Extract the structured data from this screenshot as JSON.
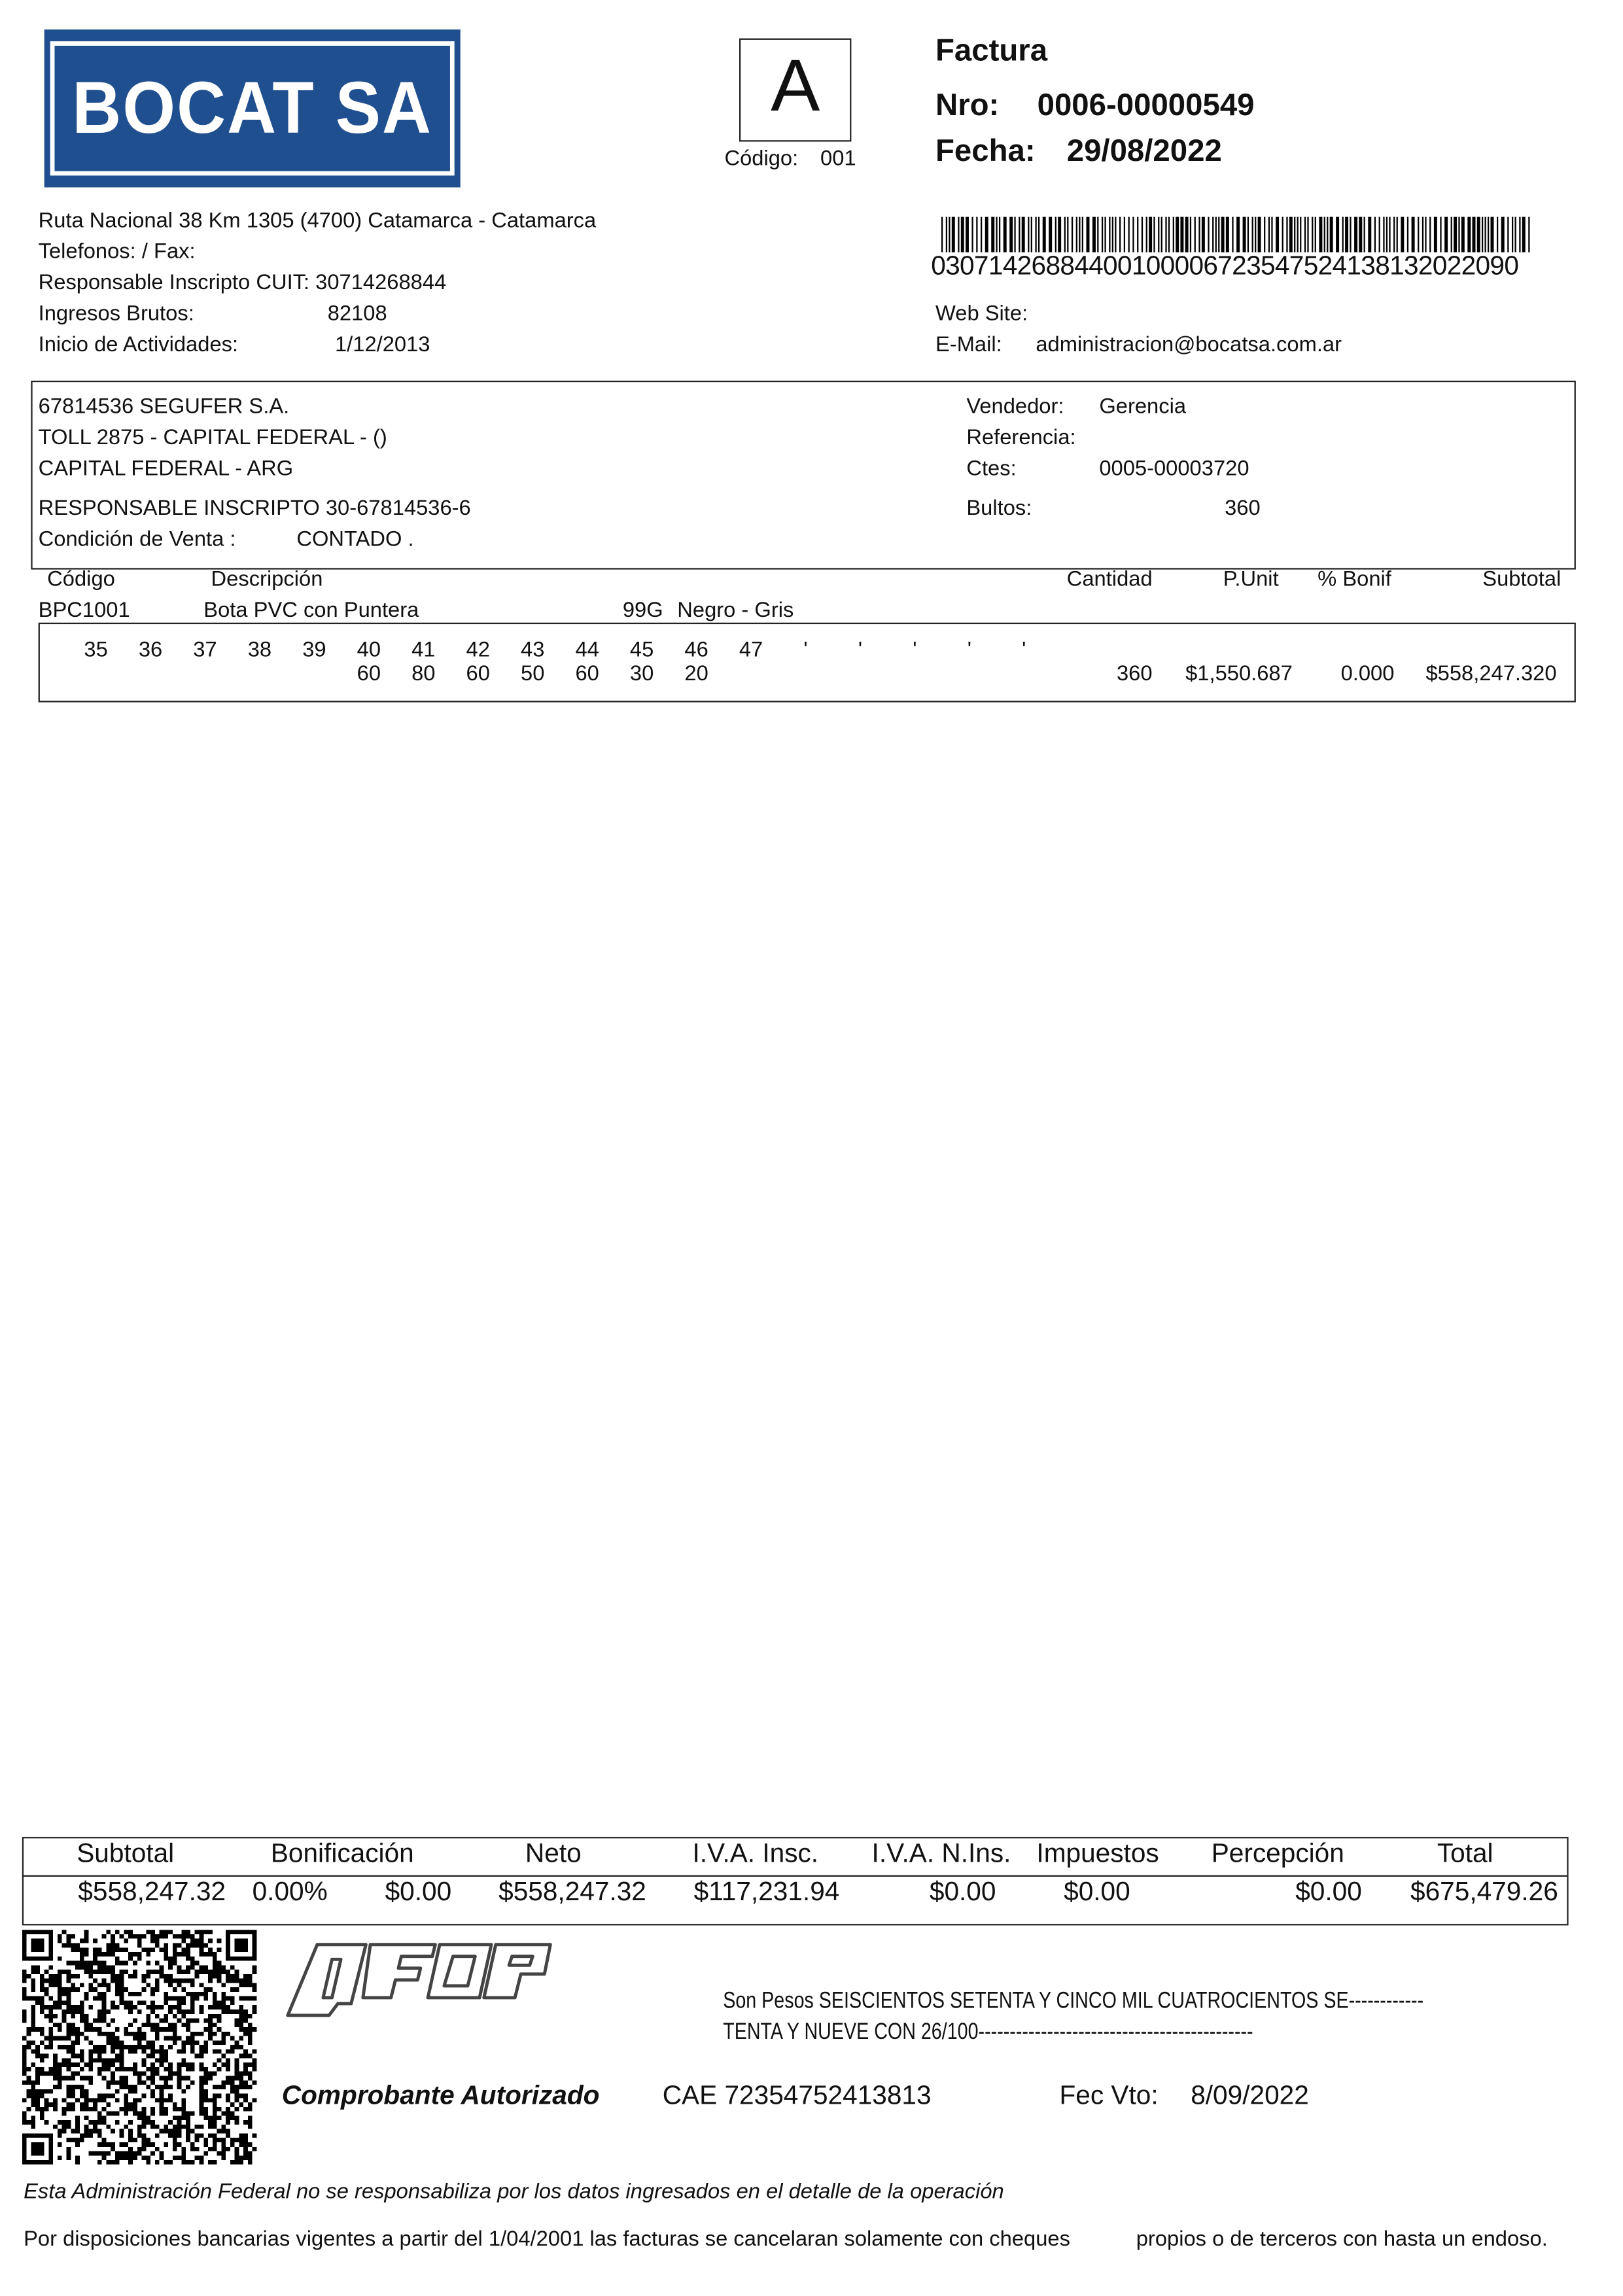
{
  "company": {
    "logo_text": "BOCAT SA",
    "address": "Ruta Nacional 38 Km 1305 (4700) Catamarca - Catamarca",
    "phones": "Telefonos:  / Fax:",
    "cuit": "Responsable Inscripto CUIT: 30714268844",
    "iibb_label": "Ingresos Brutos:",
    "iibb_value": "82108",
    "inicio_label": "Inicio de Actividades:",
    "inicio_value": "1/12/2013",
    "web_label": "Web Site:",
    "email_label": "E-Mail:",
    "email_value": "administracion@bocatsa.com.ar",
    "brand_color": "#1f4f8f"
  },
  "invoice": {
    "letter": "A",
    "codigo_label": "Código:",
    "codigo_value": "001",
    "title": "Factura",
    "nro_label": "Nro:",
    "nro_value": "0006-00000549",
    "fecha_label": "Fecha:",
    "fecha_value": "29/08/2022",
    "barcode_number": "03071426884400100006723547524138132022090"
  },
  "client": {
    "line1": "67814536  SEGUFER S.A.",
    "line2": "TOLL 2875 - CAPITAL FEDERAL - ()",
    "line3": "CAPITAL FEDERAL - ARG",
    "iva": "RESPONSABLE INSCRIPTO  30-67814536-6",
    "cond_label": "Condición de Venta :",
    "cond_value": "CONTADO .",
    "vendedor_label": "Vendedor:",
    "vendedor_value": "Gerencia",
    "referencia_label": "Referencia:",
    "ctes_label": "Ctes:",
    "ctes_value": "0005-00003720",
    "bultos_label": "Bultos:",
    "bultos_value": "360"
  },
  "items_header": {
    "codigo": "Código",
    "descripcion": "Descripción",
    "cantidad": "Cantidad",
    "punit": "P.Unit",
    "bonif": "% Bonif",
    "subtotal": "Subtotal"
  },
  "items": [
    {
      "codigo": "BPC1001",
      "descripcion": "Bota PVC con Puntera",
      "modelo": "99G",
      "color": "Negro - Gris",
      "sizes": [
        "35",
        "36",
        "37",
        "38",
        "39",
        "40",
        "41",
        "42",
        "43",
        "44",
        "45",
        "46",
        "47",
        "'",
        "'",
        "'",
        "'",
        "'"
      ],
      "qty_per_size": [
        "",
        "",
        "",
        "",
        "",
        "60",
        "80",
        "60",
        "50",
        "60",
        "30",
        "20",
        "",
        "",
        "",
        "",
        "",
        ""
      ],
      "cantidad": "360",
      "punit": "$1,550.687",
      "bonif": "0.000",
      "subtotal": "$558,247.320"
    }
  ],
  "totals": {
    "headers": [
      "Subtotal",
      "Bonificación",
      "Neto",
      "I.V.A. Insc.",
      "I.V.A. N.Ins.",
      "Impuestos",
      "Percepción",
      "Total"
    ],
    "values": [
      "$558,247.32",
      "0.00%",
      "$0.00",
      "$558,247.32",
      "$117,231.94",
      "$0.00",
      "$0.00",
      "$0.00",
      "$675,479.26"
    ]
  },
  "footer": {
    "afip_logo": "AFIP",
    "son_pesos_1": "Son Pesos SEISCIENTOS SETENTA Y CINCO MIL CUATROCIENTOS SE------------",
    "son_pesos_2": "TENTA Y NUEVE CON 26/100--------------------------------------------",
    "autorizado": "Comprobante Autorizado",
    "cae": "CAE 72354752413813",
    "fec_vto_label": "Fec Vto:",
    "fec_vto_value": "8/09/2022",
    "disclaimer": "Esta Administración Federal no se responsabiliza por los datos ingresados en el detalle de la operación",
    "bank_note_1": "Por disposiciones bancarias vigentes a partir del 1/04/2001 las facturas se cancelaran solamente con cheques",
    "bank_note_2": "propios o de terceros con hasta un endoso."
  }
}
